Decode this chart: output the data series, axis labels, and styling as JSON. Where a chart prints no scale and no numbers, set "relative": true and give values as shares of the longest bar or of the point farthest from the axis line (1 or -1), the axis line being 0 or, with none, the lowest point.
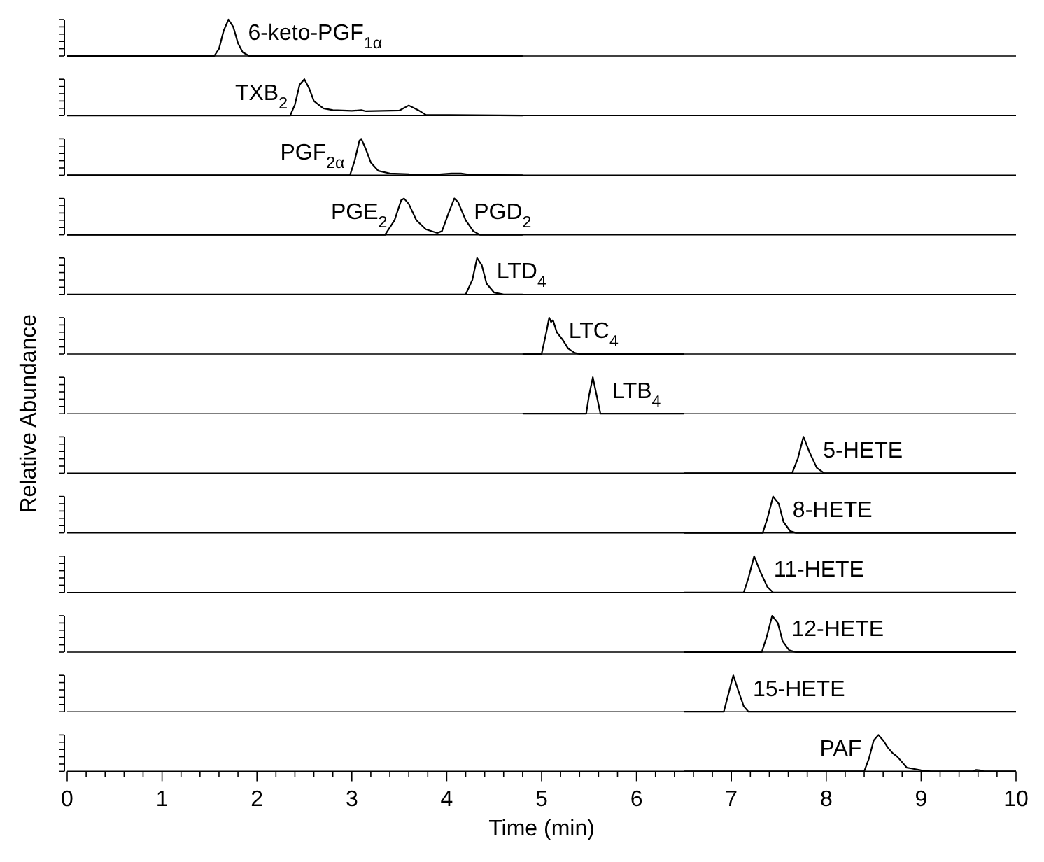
{
  "chart_data": [
    {
      "type": "line",
      "relative": true,
      "xlim": [
        0,
        10
      ],
      "tick_labels": false,
      "series": [
        {
          "color": "#000000",
          "x": [
            0,
            1.55,
            1.6,
            1.65,
            1.7,
            1.75,
            1.8,
            1.85,
            1.92,
            4.8
          ],
          "values": [
            0,
            0,
            0.2,
            0.7,
            1,
            0.8,
            0.35,
            0.1,
            0,
            0
          ]
        }
      ],
      "annotations": [
        {
          "text": "6-keto-PGF$_{1α}$",
          "x": 1.7,
          "y": 1
        }
      ]
    },
    {
      "type": "line",
      "relative": true,
      "xlim": [
        0,
        10
      ],
      "tick_labels": false,
      "series": [
        {
          "color": "#000000",
          "x": [
            0,
            2.35,
            2.4,
            2.45,
            2.5,
            2.55,
            2.6,
            2.7,
            2.8,
            3.0,
            3.1,
            3.15,
            3.5,
            3.6,
            3.7,
            3.78,
            4.8
          ],
          "values": [
            0,
            0,
            0.3,
            0.85,
            1,
            0.75,
            0.4,
            0.2,
            0.15,
            0.13,
            0.15,
            0.12,
            0.14,
            0.28,
            0.15,
            0.02,
            0
          ]
        }
      ],
      "annotations": [
        {
          "text": "TXB$_{2}$",
          "x": 2.5,
          "y": 1
        }
      ]
    },
    {
      "type": "line",
      "relative": true,
      "xlim": [
        0,
        10
      ],
      "tick_labels": false,
      "series": [
        {
          "color": "#000000",
          "x": [
            0,
            2.98,
            3.03,
            3.08,
            3.1,
            3.15,
            3.2,
            3.28,
            3.4,
            3.6,
            3.9,
            4.05,
            4.15,
            4.25,
            4.8
          ],
          "values": [
            0,
            0,
            0.4,
            0.95,
            1,
            0.7,
            0.35,
            0.12,
            0.05,
            0.03,
            0.02,
            0.05,
            0.05,
            0.01,
            0
          ]
        }
      ],
      "annotations": [
        {
          "text": "PGF$_{2α}$",
          "x": 3.1,
          "y": 1
        }
      ]
    },
    {
      "type": "line",
      "relative": true,
      "xlim": [
        0,
        10
      ],
      "tick_labels": false,
      "series": [
        {
          "color": "#000000",
          "x": [
            0,
            3.35,
            3.45,
            3.52,
            3.55,
            3.6,
            3.68,
            3.78,
            3.9,
            3.95,
            4.02,
            4.08,
            4.12,
            4.2,
            4.28,
            4.35,
            4.8
          ],
          "values": [
            0,
            0,
            0.4,
            0.95,
            1,
            0.85,
            0.4,
            0.15,
            0.05,
            0.1,
            0.6,
            1,
            0.9,
            0.4,
            0.1,
            0,
            0
          ]
        }
      ],
      "annotations": [
        {
          "text": "PGE$_{2}$",
          "x": 3.55,
          "y": 1
        },
        {
          "text": "PGD$_{2}$",
          "x": 4.08,
          "y": 1
        }
      ]
    },
    {
      "type": "line",
      "relative": true,
      "xlim": [
        0,
        10
      ],
      "tick_labels": false,
      "series": [
        {
          "color": "#000000",
          "x": [
            0,
            4.2,
            4.27,
            4.32,
            4.37,
            4.42,
            4.5,
            4.6,
            4.8
          ],
          "values": [
            0,
            0,
            0.4,
            1,
            0.8,
            0.3,
            0.05,
            0,
            0
          ]
        }
      ],
      "annotations": [
        {
          "text": "LTD$_{4}$",
          "x": 4.32,
          "y": 1
        }
      ]
    },
    {
      "type": "line",
      "relative": true,
      "xlim": [
        0,
        10
      ],
      "tick_labels": false,
      "series": [
        {
          "color": "#000000",
          "x": [
            4.8,
            5.0,
            5.05,
            5.08,
            5.1,
            5.12,
            5.16,
            5.22,
            5.28,
            5.35,
            5.4,
            6.5
          ],
          "values": [
            0,
            0,
            0.6,
            1,
            0.88,
            0.93,
            0.6,
            0.4,
            0.15,
            0.03,
            0,
            0
          ]
        }
      ],
      "annotations": [
        {
          "text": "LTC$_{4}$",
          "x": 5.08,
          "y": 1
        }
      ]
    },
    {
      "type": "line",
      "relative": true,
      "xlim": [
        0,
        10
      ],
      "tick_labels": false,
      "ylabel": "Relative Abundance",
      "series": [
        {
          "color": "#000000",
          "x": [
            4.8,
            5.47,
            5.5,
            5.54,
            5.58,
            5.62,
            6.5
          ],
          "values": [
            0,
            0,
            0.5,
            1,
            0.5,
            0,
            0
          ]
        }
      ],
      "annotations": [
        {
          "text": "LTB$_{4}$",
          "x": 5.54,
          "y": 1
        }
      ]
    },
    {
      "type": "line",
      "relative": true,
      "xlim": [
        0,
        10
      ],
      "tick_labels": false,
      "series": [
        {
          "color": "#000000",
          "x": [
            6.5,
            7.64,
            7.7,
            7.76,
            7.82,
            7.9,
            7.98,
            10
          ],
          "values": [
            0,
            0,
            0.4,
            1,
            0.6,
            0.15,
            0,
            0
          ]
        }
      ],
      "annotations": [
        {
          "text": "5-HETE",
          "x": 7.76,
          "y": 1
        }
      ]
    },
    {
      "type": "line",
      "relative": true,
      "xlim": [
        0,
        10
      ],
      "tick_labels": false,
      "series": [
        {
          "color": "#000000",
          "x": [
            6.5,
            7.33,
            7.38,
            7.44,
            7.5,
            7.55,
            7.62,
            7.68,
            10
          ],
          "values": [
            0,
            0,
            0.4,
            1,
            0.8,
            0.3,
            0.05,
            0,
            0
          ]
        }
      ],
      "annotations": [
        {
          "text": "8-HETE",
          "x": 7.44,
          "y": 1
        }
      ]
    },
    {
      "type": "line",
      "relative": true,
      "xlim": [
        0,
        10
      ],
      "tick_labels": false,
      "series": [
        {
          "color": "#000000",
          "x": [
            6.5,
            7.13,
            7.18,
            7.24,
            7.3,
            7.38,
            7.44,
            10
          ],
          "values": [
            0,
            0,
            0.4,
            1,
            0.6,
            0.15,
            0,
            0
          ]
        }
      ],
      "annotations": [
        {
          "text": "11-HETE",
          "x": 7.24,
          "y": 1
        }
      ]
    },
    {
      "type": "line",
      "relative": true,
      "xlim": [
        0,
        10
      ],
      "tick_labels": false,
      "series": [
        {
          "color": "#000000",
          "x": [
            6.5,
            7.32,
            7.37,
            7.43,
            7.49,
            7.54,
            7.61,
            7.68,
            10
          ],
          "values": [
            0,
            0,
            0.4,
            1,
            0.8,
            0.3,
            0.05,
            0,
            0
          ]
        }
      ],
      "annotations": [
        {
          "text": "12-HETE",
          "x": 7.43,
          "y": 1
        }
      ]
    },
    {
      "type": "line",
      "relative": true,
      "xlim": [
        0,
        10
      ],
      "tick_labels": false,
      "series": [
        {
          "color": "#000000",
          "x": [
            6.5,
            6.92,
            6.96,
            7.02,
            7.07,
            7.13,
            7.18,
            10
          ],
          "values": [
            0,
            0,
            0.4,
            1,
            0.6,
            0.15,
            0,
            0
          ]
        }
      ],
      "annotations": [
        {
          "text": "15-HETE",
          "x": 7.02,
          "y": 1
        }
      ]
    },
    {
      "type": "line",
      "relative": true,
      "xlim": [
        0,
        10
      ],
      "tick_labels": "x",
      "xlabel": "Time (min)",
      "xticks": [
        0,
        {
          "value": 0.2,
          "label": null
        },
        {
          "value": 0.4,
          "label": null
        },
        {
          "value": 0.6,
          "label": null
        },
        {
          "value": 0.8,
          "label": null
        },
        1,
        {
          "value": 1.2,
          "label": null
        },
        {
          "value": 1.4,
          "label": null
        },
        {
          "value": 1.6,
          "label": null
        },
        {
          "value": 1.8,
          "label": null
        },
        2,
        {
          "value": 2.2,
          "label": null
        },
        {
          "value": 2.4,
          "label": null
        },
        {
          "value": 2.6,
          "label": null
        },
        {
          "value": 2.8,
          "label": null
        },
        3,
        {
          "value": 3.2,
          "label": null
        },
        {
          "value": 3.4,
          "label": null
        },
        {
          "value": 3.6,
          "label": null
        },
        {
          "value": 3.8,
          "label": null
        },
        4,
        {
          "value": 4.2,
          "label": null
        },
        {
          "value": 4.4,
          "label": null
        },
        {
          "value": 4.6,
          "label": null
        },
        {
          "value": 4.8,
          "label": null
        },
        5,
        {
          "value": 5.2,
          "label": null
        },
        {
          "value": 5.4,
          "label": null
        },
        {
          "value": 5.6,
          "label": null
        },
        {
          "value": 5.8,
          "label": null
        },
        6,
        {
          "value": 6.2,
          "label": null
        },
        {
          "value": 6.4,
          "label": null
        },
        {
          "value": 6.6,
          "label": null
        },
        {
          "value": 6.8,
          "label": null
        },
        7,
        {
          "value": 7.2,
          "label": null
        },
        {
          "value": 7.4,
          "label": null
        },
        {
          "value": 7.6,
          "label": null
        },
        {
          "value": 7.8,
          "label": null
        },
        8,
        {
          "value": 8.2,
          "label": null
        },
        {
          "value": 8.4,
          "label": null
        },
        {
          "value": 8.6,
          "label": null
        },
        {
          "value": 8.8,
          "label": null
        },
        9,
        {
          "value": 9.2,
          "label": null
        },
        {
          "value": 9.4,
          "label": null
        },
        {
          "value": 9.6,
          "label": null
        },
        {
          "value": 9.8,
          "label": null
        },
        10
      ],
      "series": [
        {
          "color": "#000000",
          "x": [
            6.5,
            8.4,
            8.45,
            8.5,
            8.55,
            8.6,
            8.65,
            8.7,
            8.75,
            8.8,
            8.85,
            8.9,
            9.0,
            9.1,
            9.55,
            9.58,
            9.62,
            9.66,
            10
          ],
          "values": [
            0,
            0,
            0.35,
            0.85,
            1,
            0.85,
            0.65,
            0.5,
            0.4,
            0.25,
            0.1,
            0.08,
            0.03,
            0,
            0,
            0.04,
            0.03,
            0,
            0
          ]
        }
      ],
      "annotations": [
        {
          "text": "PAF",
          "x": 8.55,
          "y": 1
        }
      ]
    }
  ]
}
